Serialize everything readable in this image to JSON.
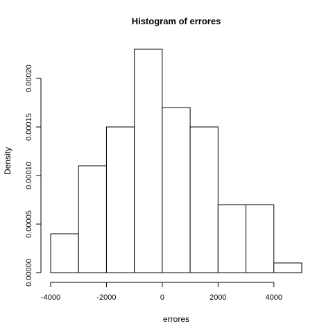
{
  "chart_data": {
    "type": "bar",
    "title": "Histogram of errores",
    "xlabel": "errores",
    "ylabel": "Density",
    "bins": [
      {
        "x0": -4000,
        "x1": -3000,
        "density": 4e-05
      },
      {
        "x0": -3000,
        "x1": -2000,
        "density": 0.00011
      },
      {
        "x0": -2000,
        "x1": -1000,
        "density": 0.00015
      },
      {
        "x0": -1000,
        "x1": 0,
        "density": 0.00023
      },
      {
        "x0": 0,
        "x1": 1000,
        "density": 0.00017
      },
      {
        "x0": 1000,
        "x1": 2000,
        "density": 0.00015
      },
      {
        "x0": 2000,
        "x1": 3000,
        "density": 7e-05
      },
      {
        "x0": 3000,
        "x1": 4000,
        "density": 7e-05
      },
      {
        "x0": 4000,
        "x1": 5000,
        "density": 1e-05
      }
    ],
    "xlim": [
      -4000,
      5000
    ],
    "ylim": [
      0,
      0.00023
    ],
    "xticks": [
      -4000,
      -2000,
      0,
      2000,
      4000
    ],
    "xtick_labels": [
      "-4000",
      "-2000",
      "0",
      "2000",
      "4000"
    ],
    "yticks": [
      0,
      5e-05,
      0.0001,
      0.00015,
      0.0002
    ],
    "ytick_labels": [
      "0.00000",
      "0.00005",
      "0.00010",
      "0.00015",
      "0.00020"
    ],
    "grid": false,
    "legend": "none"
  }
}
